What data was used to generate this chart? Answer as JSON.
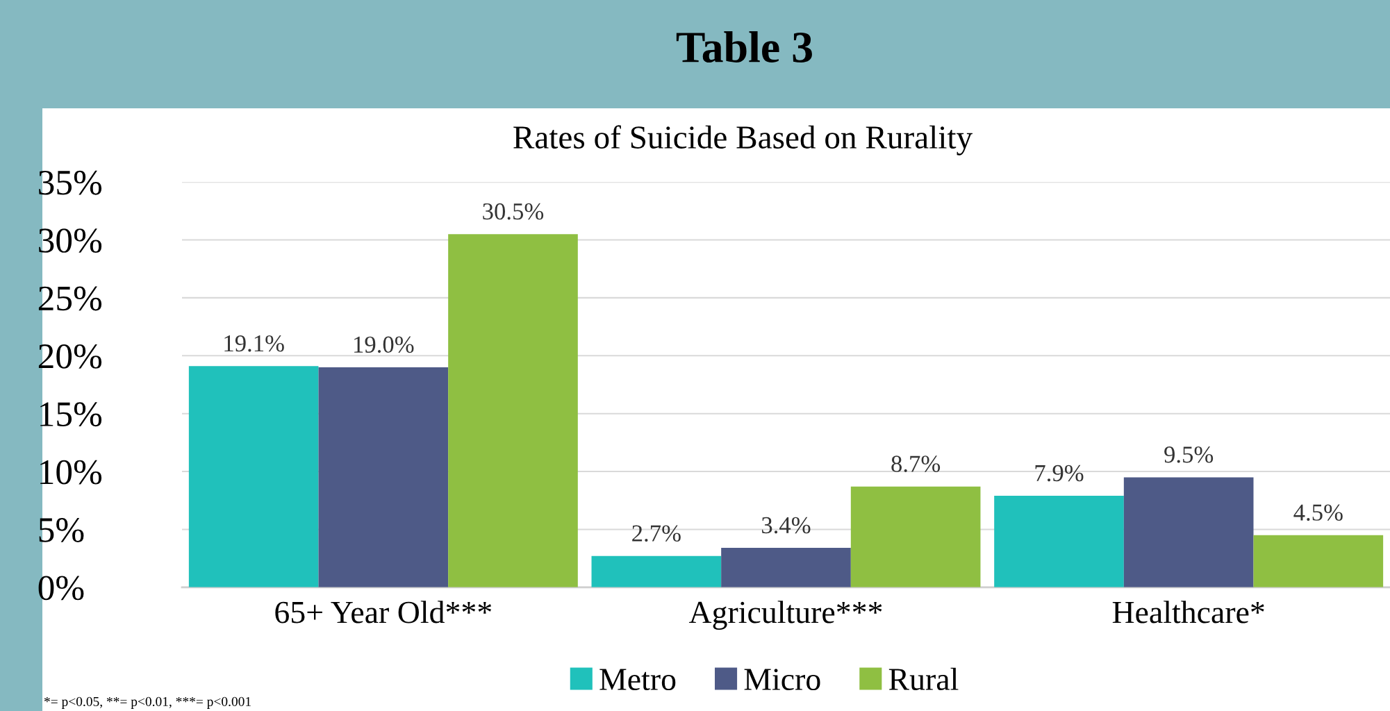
{
  "chart_data": {
    "type": "bar",
    "title": "Table 3",
    "subtitle": "Rates of Suicide Based on Rurality",
    "categories": [
      "65+ Year Old***",
      "Agriculture***",
      "Healthcare*"
    ],
    "series": [
      {
        "name": "Metro",
        "color": "#20c1bb",
        "values": [
          19.1,
          2.7,
          7.9
        ],
        "value_labels": [
          "19.1%",
          "2.7%",
          "7.9%"
        ]
      },
      {
        "name": "Micro",
        "color": "#4e5a87",
        "values": [
          19.0,
          3.4,
          9.5
        ],
        "value_labels": [
          "19.0%",
          "3.4%",
          "9.5%"
        ]
      },
      {
        "name": "Rural",
        "color": "#8fbf42",
        "values": [
          30.5,
          8.7,
          4.5
        ],
        "value_labels": [
          "30.5%",
          "8.7%",
          "4.5%"
        ]
      }
    ],
    "ylim": [
      0,
      35
    ],
    "yticks": [
      {
        "value": 0,
        "label": "0%"
      },
      {
        "value": 5,
        "label": "5%"
      },
      {
        "value": 10,
        "label": "10%"
      },
      {
        "value": 15,
        "label": "15%"
      },
      {
        "value": 20,
        "label": "20%"
      },
      {
        "value": 25,
        "label": "25%"
      },
      {
        "value": 30,
        "label": "30%"
      },
      {
        "value": 35,
        "label": "35%"
      }
    ],
    "grid": "y",
    "legend": "bottom",
    "annotations": [
      "*= p<0.05, **= p<0.01, ***= p<0.001"
    ]
  }
}
